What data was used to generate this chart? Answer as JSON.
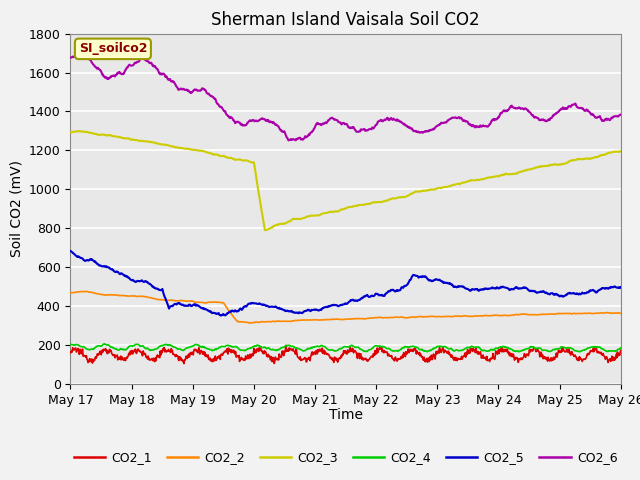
{
  "title": "Sherman Island Vaisala Soil CO2",
  "ylabel": "Soil CO2 (mV)",
  "xlabel": "Time",
  "legend_label": "SI_soilco2",
  "ylim": [
    0,
    1800
  ],
  "yticks": [
    0,
    200,
    400,
    600,
    800,
    1000,
    1200,
    1400,
    1600,
    1800
  ],
  "xtick_labels": [
    "May 17",
    "May 18",
    "May 19",
    "May 20",
    "May 21",
    "May 22",
    "May 23",
    "May 24",
    "May 25",
    "May 26"
  ],
  "series_colors": {
    "CO2_1": "#dd0000",
    "CO2_2": "#ff8800",
    "CO2_3": "#cccc00",
    "CO2_4": "#00cc00",
    "CO2_5": "#0000cc",
    "CO2_6": "#aa00aa"
  },
  "plot_bg_color": "#e8e8e8",
  "fig_bg_color": "#f2f2f2",
  "grid_color": "#ffffff",
  "figsize": [
    6.4,
    4.8
  ],
  "dpi": 100
}
